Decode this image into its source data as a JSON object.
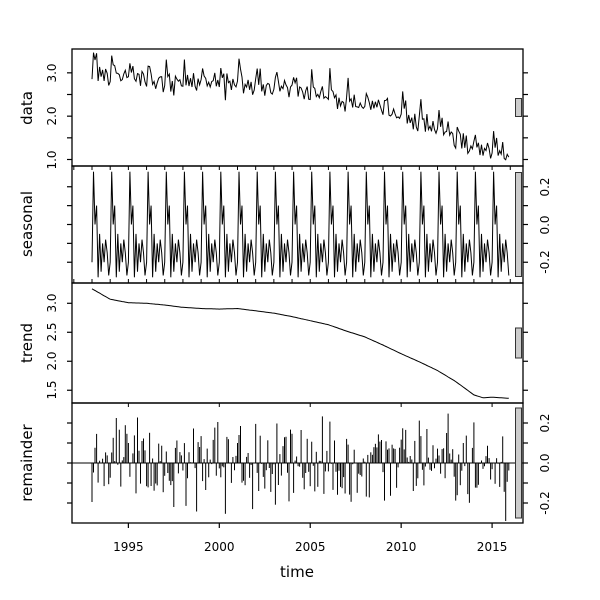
{
  "chart_data": {
    "type": "line",
    "description": "STL decomposition plot with four stacked panels sharing a time axis",
    "xlabel": "time",
    "line_color": "#000000",
    "frame_color": "#000000",
    "range_bar": {
      "fill": "#cccccc",
      "stroke": "#333333"
    },
    "x": {
      "start": 1993.0,
      "end": 2015.917,
      "points_per_year": 12,
      "lim": [
        1991.9,
        2016.7
      ],
      "ticks": [
        1995,
        2000,
        2005,
        2010,
        2015
      ],
      "tick_labels": [
        "1995",
        "2000",
        "2005",
        "2010",
        "2015"
      ],
      "minor_tick_start": 1992,
      "minor_tick_end": 2016
    },
    "panels": [
      {
        "name": "data",
        "ylabel": "data",
        "ylim": [
          0.85,
          3.55
        ],
        "yticks": [
          1.0,
          1.5,
          2.0,
          2.5,
          3.0
        ],
        "ytick_labels": [
          "1.0",
          "2.0",
          "3.0"
        ],
        "ytick_label_values": [
          1.0,
          2.0,
          3.0
        ],
        "label_side": "left",
        "composition": "trend + seasonal + remainder"
      },
      {
        "name": "seasonal",
        "ylabel": "seasonal",
        "ylim": [
          -0.31,
          0.31
        ],
        "yticks": [
          -0.2,
          -0.1,
          0.0,
          0.1,
          0.2
        ],
        "ytick_labels": [
          "-0.2",
          "0.0",
          "0.2"
        ],
        "ytick_label_values": [
          -0.2,
          0.0,
          0.2
        ],
        "label_side": "right",
        "monthly_pattern": [
          -0.2,
          0.28,
          0.0,
          0.1,
          -0.28,
          -0.05,
          -0.25,
          -0.1,
          -0.2,
          -0.08,
          -0.15,
          -0.27
        ]
      },
      {
        "name": "trend",
        "ylabel": "trend",
        "ylim": [
          1.28,
          3.35
        ],
        "yticks": [
          1.5,
          2.0,
          2.5,
          3.0
        ],
        "ytick_labels": [
          "1.5",
          "2.0",
          "2.5",
          "3.0"
        ],
        "ytick_label_values": [
          1.5,
          2.0,
          2.5,
          3.0
        ],
        "label_side": "left",
        "knot_years": [
          1993,
          1994,
          1995,
          1996,
          1997,
          1998,
          1999,
          2000,
          2001,
          2002,
          2003,
          2004,
          2005,
          2006,
          2007,
          2008,
          2009,
          2010,
          2011,
          2012,
          2013,
          2014,
          2014.5,
          2015,
          2015.5,
          2016
        ],
        "knot_values": [
          3.25,
          3.07,
          3.01,
          3.0,
          2.97,
          2.93,
          2.91,
          2.9,
          2.91,
          2.87,
          2.83,
          2.77,
          2.7,
          2.63,
          2.52,
          2.42,
          2.28,
          2.13,
          1.99,
          1.84,
          1.65,
          1.42,
          1.37,
          1.38,
          1.37,
          1.36
        ]
      },
      {
        "name": "remainder",
        "ylabel": "remainder",
        "ylim": [
          -0.3,
          0.3
        ],
        "yticks": [
          -0.2,
          -0.1,
          0.0,
          0.1,
          0.2
        ],
        "ytick_labels": [
          "-0.2",
          "0.0",
          "0.2"
        ],
        "ytick_label_values": [
          -0.2,
          0.0,
          0.2
        ],
        "label_side": "right",
        "style": "h-bars",
        "zero_line": 0.0,
        "noise_seed": 97,
        "noise_scale": 0.26,
        "spike_every": 19,
        "spike_offset": 7,
        "spike_scale": 1.6,
        "clamp": 0.29
      }
    ]
  }
}
